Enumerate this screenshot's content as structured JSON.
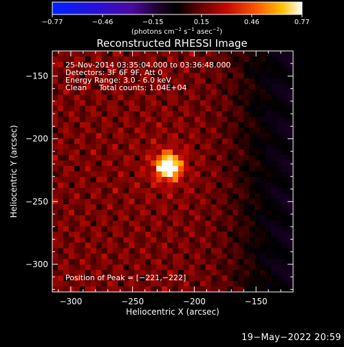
{
  "chart_data": {
    "type": "heatmap",
    "title": "Reconstructed RHESSI Image",
    "xlabel": "Heliocentric X (arcsec)",
    "ylabel": "Heliocentric Y (arcsec)",
    "xlim": [
      -315,
      -120
    ],
    "ylim": [
      -322,
      -130
    ],
    "x_ticks": [
      -300,
      -250,
      -200,
      -150
    ],
    "x_tick_labels": [
      "−300",
      "−250",
      "−200",
      "−150"
    ],
    "y_ticks": [
      -150,
      -200,
      -250,
      -300
    ],
    "y_tick_labels": [
      "−150",
      "−200",
      "−250",
      "−300"
    ],
    "colorbar": {
      "ticks": [
        -0.77,
        -0.46,
        -0.15,
        0.15,
        0.46,
        0.77
      ],
      "tick_labels": [
        "−0.77",
        "−0.46",
        "−0.15",
        "0.15",
        "0.46",
        "0.77"
      ],
      "range": [
        -0.77,
        0.77
      ],
      "units_text": "(photons cm",
      "units_exp1": "−2",
      "units_mid": " s",
      "units_exp2": "−1",
      "units_mid2": " asec",
      "units_exp3": "−2",
      "units_end": ")"
    },
    "info_lines": [
      "25-Nov-2014 03:35:04.000 to 03:36:48.000",
      "Detectors: 3F 6F 9F, Att 0",
      "Energy Range: 3.0 - 6.0 keV",
      "Clean     Total counts: 1.04E+04"
    ],
    "peak_label": "Position of Peak = [−221,−222]",
    "peak": [
      -221,
      -222
    ],
    "peak_value": 0.77
  },
  "timestamp": "19−May−2022 20:59"
}
